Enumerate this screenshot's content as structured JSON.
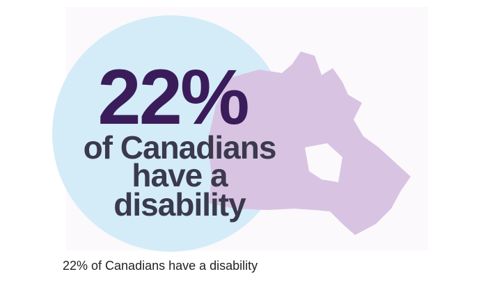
{
  "graphic": {
    "headline": "22%",
    "lines": [
      "of Canadians",
      "have a",
      "disability"
    ]
  },
  "caption": "22% of Canadians have a disability"
}
